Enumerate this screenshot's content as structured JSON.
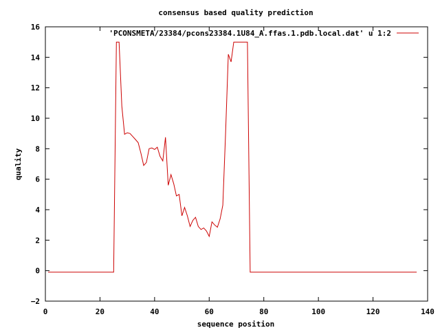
{
  "chart_data": {
    "type": "line",
    "title": "consensus based quality prediction",
    "xlabel": "sequence position",
    "ylabel": "quality",
    "xlim": [
      0,
      140
    ],
    "ylim": [
      -2,
      16
    ],
    "xticks": [
      0,
      20,
      40,
      60,
      80,
      100,
      120,
      140
    ],
    "yticks": [
      -2,
      0,
      2,
      4,
      6,
      8,
      10,
      12,
      14,
      16
    ],
    "legend_position": "top-right",
    "series": [
      {
        "name": "'PCONSMETA/23384/pcons23384.1U84_A.ffas.1.pdb.local.dat' u 1:2",
        "color": "#cc0000",
        "x": [
          1,
          2,
          3,
          4,
          5,
          6,
          7,
          8,
          9,
          10,
          11,
          12,
          13,
          14,
          15,
          16,
          17,
          18,
          19,
          20,
          21,
          22,
          23,
          24,
          25,
          26,
          27,
          28,
          29,
          30,
          31,
          32,
          33,
          34,
          35,
          36,
          37,
          38,
          39,
          40,
          41,
          42,
          43,
          44,
          45,
          46,
          47,
          48,
          49,
          50,
          51,
          52,
          53,
          54,
          55,
          56,
          57,
          58,
          59,
          60,
          61,
          62,
          63,
          64,
          65,
          66,
          67,
          68,
          69,
          70,
          71,
          72,
          73,
          74,
          75,
          76,
          80,
          90,
          100,
          110,
          120,
          130,
          136
        ],
        "y": [
          -0.1,
          -0.1,
          -0.1,
          -0.1,
          -0.1,
          -0.1,
          -0.1,
          -0.1,
          -0.1,
          -0.1,
          -0.1,
          -0.1,
          -0.1,
          -0.1,
          -0.1,
          -0.1,
          -0.1,
          -0.1,
          -0.1,
          -0.1,
          -0.1,
          -0.1,
          -0.1,
          -0.1,
          -0.1,
          15.0,
          15.0,
          10.8,
          8.95,
          9.05,
          9.0,
          8.8,
          8.6,
          8.4,
          7.7,
          6.9,
          7.1,
          8.0,
          8.05,
          7.95,
          8.1,
          7.5,
          7.2,
          8.75,
          5.6,
          6.3,
          5.7,
          4.9,
          5.0,
          3.6,
          4.15,
          3.6,
          2.9,
          3.3,
          3.5,
          2.9,
          2.7,
          2.8,
          2.6,
          2.25,
          3.2,
          3.0,
          2.85,
          3.4,
          4.3,
          9.0,
          14.2,
          13.7,
          15.0,
          15.0,
          15.0,
          15.0,
          15.0,
          15.0,
          -0.1,
          -0.1,
          -0.1,
          -0.1,
          -0.1,
          -0.1,
          -0.1,
          -0.1,
          -0.1
        ]
      }
    ]
  }
}
